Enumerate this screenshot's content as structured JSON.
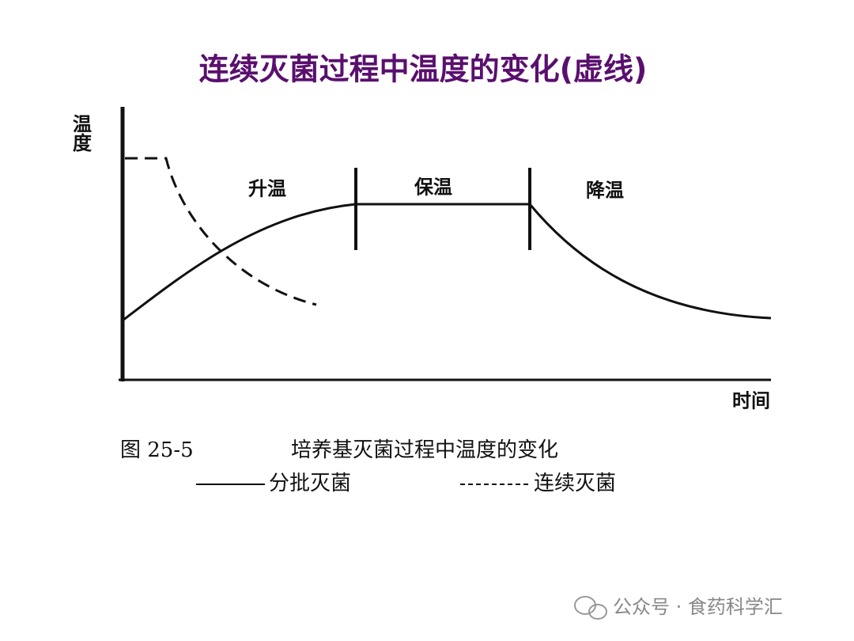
{
  "header": {
    "title": "连续灭菌过程中温度的变化(虚线)"
  },
  "diagram": {
    "y_axis_label": "温度",
    "x_axis_label": "时间",
    "phases": [
      "升温",
      "保温",
      "降温"
    ],
    "caption": {
      "number": "图 25-5",
      "text": "培养基灭菌过程中温度的变化"
    },
    "legend": [
      "分批灭菌",
      "连续灭菌"
    ]
  },
  "watermark": "公众号 · 食药科学汇"
}
